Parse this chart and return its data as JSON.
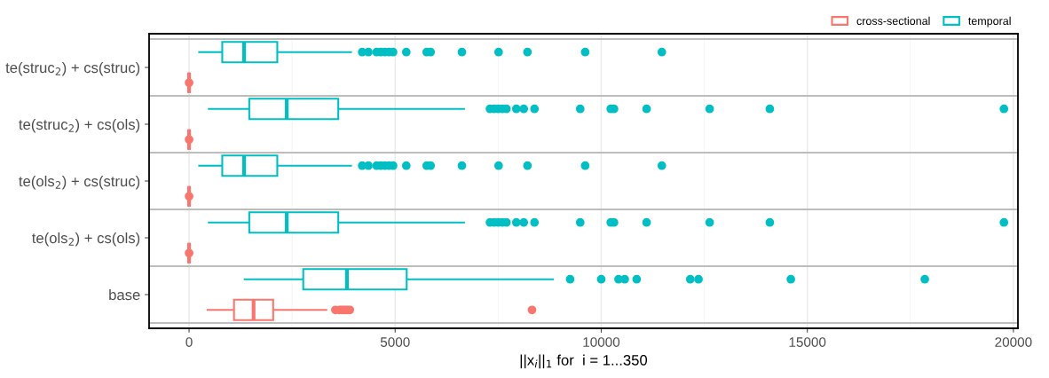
{
  "chart_data": {
    "type": "box",
    "orientation": "horizontal",
    "xlabel": "||x$_{i}$||$_{1}$ for  i = 1...350",
    "categories": [
      "te(struc$_{2}$) + cs(struc)",
      "te(struc$_{2}$) + cs(ols)",
      "te(ols$_{2}$) + cs(struc)",
      "te(ols$_{2}$) + cs(ols)",
      "base"
    ],
    "xlim": [
      -970,
      20110
    ],
    "xticks": [
      0,
      5000,
      10000,
      15000,
      20000
    ],
    "grid": "x",
    "legend": "top right",
    "marker": "circle",
    "series": [
      {
        "name": "cross-sectional",
        "color": "#f8766d",
        "boxes": [
          {
            "low": 0,
            "q1": 0,
            "median": 0,
            "q3": 0,
            "high": 0,
            "outliers": [
              0
            ]
          },
          {
            "low": 0,
            "q1": 0,
            "median": 0,
            "q3": 0,
            "high": 0,
            "outliers": [
              0
            ]
          },
          {
            "low": 0,
            "q1": 0,
            "median": 0,
            "q3": 0,
            "high": 0,
            "outliers": [
              0
            ]
          },
          {
            "low": 0,
            "q1": 0,
            "median": 0,
            "q3": 0,
            "high": 0,
            "outliers": [
              0
            ]
          },
          {
            "low": 450,
            "q1": 1090,
            "median": 1565,
            "q3": 2040,
            "high": 3330,
            "outliers": [
              3550,
              3650,
              3700,
              3750,
              3800,
              3850,
              3900,
              8320
            ]
          }
        ]
      },
      {
        "name": "temporal",
        "color": "#00bfc4",
        "boxes": [
          {
            "low": 245,
            "q1": 805,
            "median": 1335,
            "q3": 2140,
            "high": 3930,
            "outliers": [
              4200,
              4350,
              4550,
              4650,
              4750,
              4850,
              4950,
              5270,
              5765,
              5860,
              6620,
              7510,
              8210,
              9610,
              11470
            ]
          },
          {
            "low": 480,
            "q1": 1460,
            "median": 2370,
            "q3": 3620,
            "high": 6670,
            "outliers": [
              7300,
              7400,
              7500,
              7600,
              7700,
              7940,
              8120,
              8380,
              9490,
              10230,
              10310,
              11100,
              12630,
              14090,
              19770
            ]
          },
          {
            "low": 245,
            "q1": 805,
            "median": 1335,
            "q3": 2140,
            "high": 3930,
            "outliers": [
              4200,
              4350,
              4550,
              4650,
              4750,
              4850,
              4950,
              5270,
              5765,
              5860,
              6620,
              7510,
              8210,
              9610,
              11470
            ]
          },
          {
            "low": 480,
            "q1": 1460,
            "median": 2370,
            "q3": 3620,
            "high": 6670,
            "outliers": [
              7300,
              7400,
              7500,
              7600,
              7700,
              7940,
              8120,
              8380,
              9490,
              10230,
              10310,
              11100,
              12630,
              14090,
              19770
            ]
          },
          {
            "low": 1350,
            "q1": 2770,
            "median": 3830,
            "q3": 5280,
            "high": 8830,
            "outliers": [
              9245,
              10000,
              10420,
              10570,
              10860,
              12160,
              12360,
              14600,
              17850
            ]
          }
        ]
      }
    ]
  }
}
